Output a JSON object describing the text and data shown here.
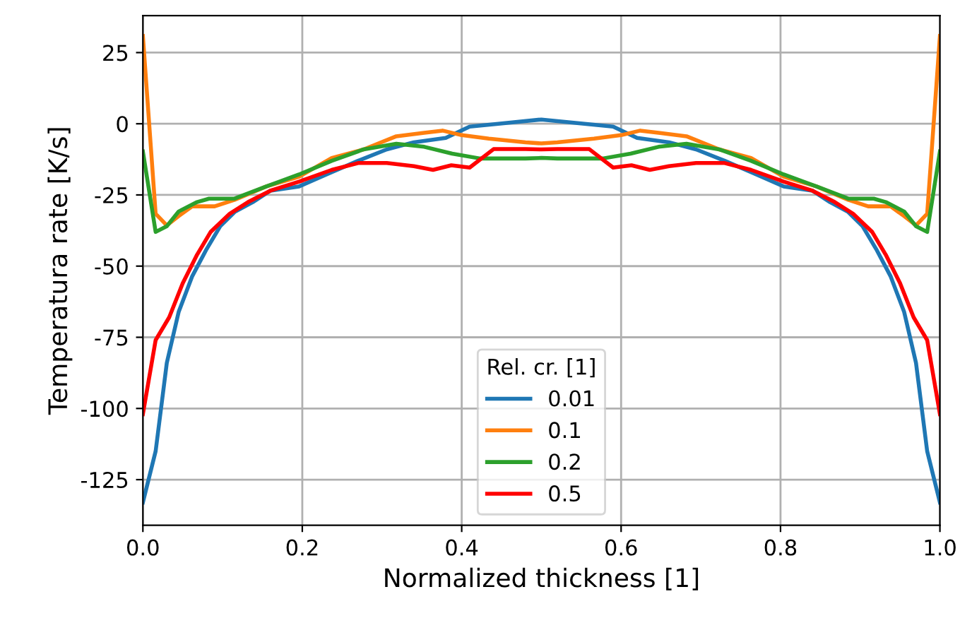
{
  "chart_data": {
    "type": "line",
    "xlabel": "Normalized thickness [1]",
    "ylabel": "Temperatura rate [K/s]",
    "legend_title": "Rel. cr. [1]",
    "legend": "bottom",
    "grid": true,
    "xlim": [
      0,
      1
    ],
    "ylim": [
      -141,
      38
    ],
    "xticks": [
      {
        "value": 0,
        "label": "0.0"
      },
      {
        "value": 0.2,
        "label": "0.2"
      },
      {
        "value": 0.4,
        "label": "0.4"
      },
      {
        "value": 0.6,
        "label": "0.6"
      },
      {
        "value": 0.8,
        "label": "0.8"
      },
      {
        "value": 1,
        "label": "1.0"
      }
    ],
    "yticks": [
      -125,
      -100,
      -75,
      -50,
      -25,
      0,
      25
    ],
    "series": [
      {
        "name": "0.01",
        "color": "#1f77b4",
        "x": [
          0,
          0.016,
          0.03,
          0.045,
          0.062,
          0.08,
          0.097,
          0.115,
          0.138,
          0.16,
          0.196,
          0.237,
          0.27,
          0.306,
          0.34,
          0.38,
          0.41,
          0.446,
          0.5,
          0.554,
          0.59,
          0.62,
          0.66,
          0.694,
          0.73,
          0.763,
          0.804,
          0.84,
          0.862,
          0.885,
          0.903,
          0.92,
          0.938,
          0.955,
          0.97,
          0.984,
          1
        ],
        "values": [
          -133,
          -115,
          -84,
          -66,
          -53.5,
          -44,
          -36,
          -31,
          -27.5,
          -23.5,
          -22,
          -17,
          -13,
          -9,
          -6.5,
          -5,
          -1,
          0,
          1.5,
          0,
          -1,
          -5,
          -6.5,
          -9,
          -13,
          -17,
          -22,
          -23.5,
          -27.5,
          -31,
          -36,
          -44,
          -53.5,
          -66,
          -84,
          -115,
          -133
        ]
      },
      {
        "name": "0.1",
        "color": "#ff7f0e",
        "x": [
          0,
          0.016,
          0.03,
          0.045,
          0.062,
          0.09,
          0.115,
          0.155,
          0.196,
          0.237,
          0.277,
          0.318,
          0.353,
          0.376,
          0.4,
          0.434,
          0.48,
          0.5,
          0.52,
          0.566,
          0.6,
          0.624,
          0.647,
          0.682,
          0.723,
          0.763,
          0.804,
          0.845,
          0.885,
          0.91,
          0.938,
          0.955,
          0.97,
          0.984,
          1
        ],
        "values": [
          30.8,
          -31.6,
          -35.7,
          -32.4,
          -29,
          -29,
          -26.7,
          -22,
          -18.6,
          -12,
          -9,
          -4.4,
          -3.2,
          -2.4,
          -4,
          -5.2,
          -6.5,
          -6.9,
          -6.5,
          -5.2,
          -4,
          -2.4,
          -3.2,
          -4.4,
          -9,
          -12,
          -18.6,
          -22,
          -26.7,
          -29,
          -29,
          -32.4,
          -35.7,
          -31.6,
          30.8
        ]
      },
      {
        "name": "0.2",
        "color": "#2ca02c",
        "x": [
          0,
          0.016,
          0.03,
          0.045,
          0.068,
          0.083,
          0.115,
          0.155,
          0.196,
          0.237,
          0.277,
          0.318,
          0.353,
          0.388,
          0.423,
          0.48,
          0.5,
          0.52,
          0.577,
          0.612,
          0.647,
          0.682,
          0.723,
          0.763,
          0.804,
          0.845,
          0.885,
          0.917,
          0.932,
          0.955,
          0.97,
          0.984,
          1
        ],
        "values": [
          -9.7,
          -38,
          -36,
          -30.8,
          -27.5,
          -26.3,
          -26.3,
          -22,
          -17.8,
          -13,
          -9,
          -7,
          -8.1,
          -10.5,
          -12.2,
          -12.2,
          -12,
          -12.2,
          -12.2,
          -10.5,
          -8.1,
          -7,
          -9,
          -13,
          -17.8,
          -22,
          -26.3,
          -26.3,
          -27.5,
          -30.8,
          -36,
          -38,
          -9.7
        ]
      },
      {
        "name": "0.5",
        "color": "#ff0000",
        "x": [
          0,
          0.016,
          0.033,
          0.05,
          0.068,
          0.085,
          0.109,
          0.132,
          0.16,
          0.196,
          0.237,
          0.27,
          0.306,
          0.34,
          0.364,
          0.387,
          0.41,
          0.44,
          0.48,
          0.5,
          0.52,
          0.56,
          0.59,
          0.613,
          0.636,
          0.66,
          0.694,
          0.73,
          0.763,
          0.804,
          0.84,
          0.868,
          0.891,
          0.915,
          0.932,
          0.95,
          0.967,
          0.984,
          1
        ],
        "values": [
          -102,
          -76,
          -68,
          -56,
          -46,
          -38,
          -31.6,
          -27.5,
          -23.5,
          -20.3,
          -16.2,
          -13.8,
          -13.8,
          -14.9,
          -16.2,
          -14.6,
          -15.4,
          -8.9,
          -8.9,
          -9,
          -8.9,
          -8.9,
          -15.4,
          -14.6,
          -16.2,
          -14.9,
          -13.8,
          -13.8,
          -16.2,
          -20.3,
          -23.5,
          -27.5,
          -31.6,
          -38,
          -46,
          -56,
          -68,
          -76,
          -102
        ]
      }
    ]
  }
}
